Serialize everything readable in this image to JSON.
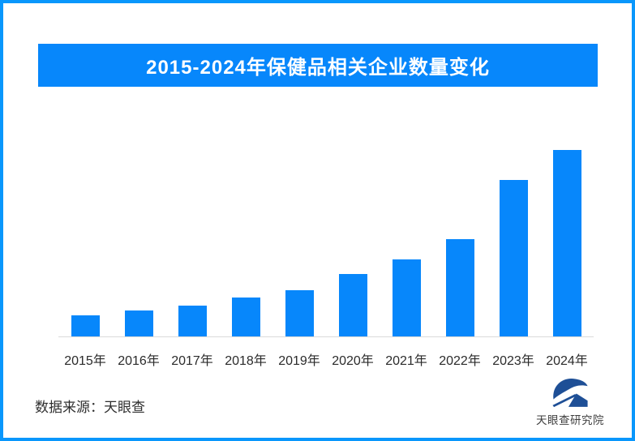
{
  "title_banner": {
    "text": "2015-2024年保健品相关企业数量变化"
  },
  "source_note": "数据来源：天眼查",
  "footer_logo": {
    "text": "天眼查研究院",
    "icon": "tianyancha-eye-logo"
  },
  "colors": {
    "primary_blue": "#0787FB",
    "frame_border_blue": "#0997FC",
    "axis_line_gray": "#DADADA",
    "axis_label_text": "#2B2B2B",
    "title_text": "#FFFFFF",
    "logo_blue": "#1E4F96",
    "logo_text_gray": "#3F3F3F"
  },
  "chart_data": {
    "type": "bar",
    "title": "2015-2024年保健品相关企业数量变化",
    "categories": [
      "2015年",
      "2016年",
      "2017年",
      "2018年",
      "2019年",
      "2020年",
      "2021年",
      "2022年",
      "2023年",
      "2024年"
    ],
    "values": [
      11.2,
      13.8,
      16.6,
      20.9,
      25.0,
      33.7,
      41.4,
      52.0,
      84.0,
      100.0
    ],
    "value_scale": "relative index, 2024 = 100 (chart shows no numeric axis or data labels; values estimated from bar heights)",
    "xlabel": "",
    "ylabel": "",
    "ylim": [
      0,
      100
    ],
    "y_axis_shown": false,
    "data_labels_shown": false,
    "grid": false,
    "legend": false,
    "bar_color": "#0787FB"
  }
}
